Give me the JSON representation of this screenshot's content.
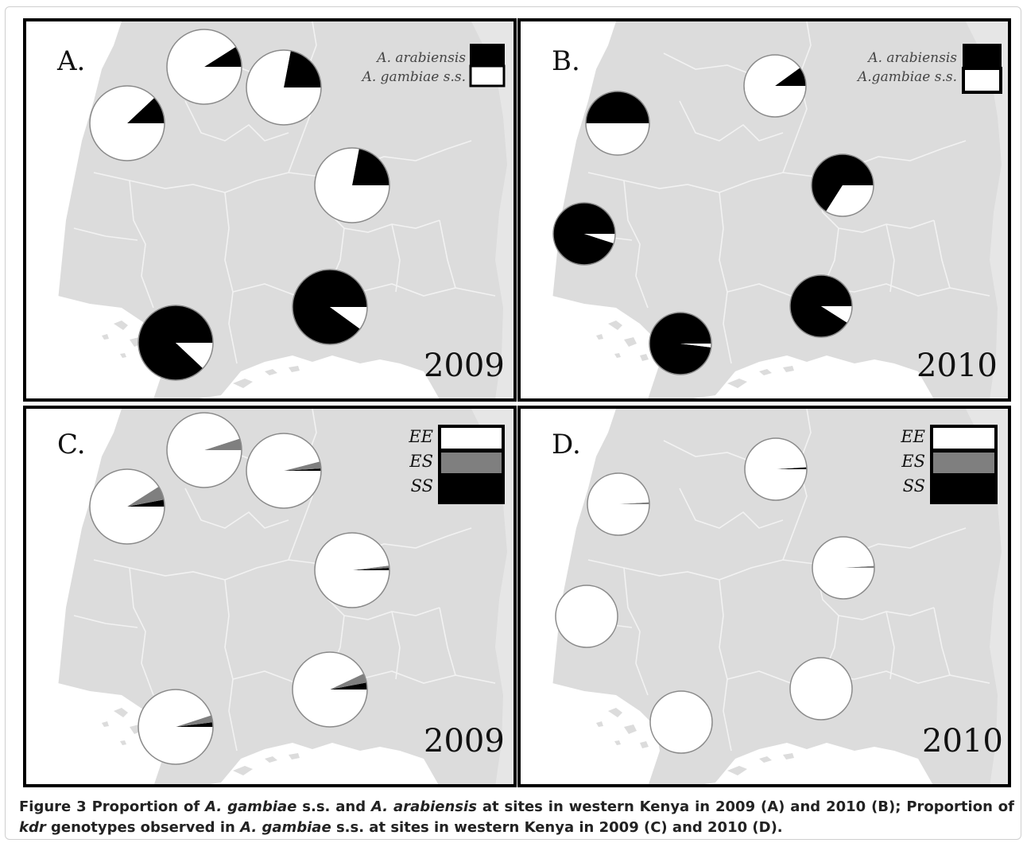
{
  "figure": {
    "panels": [
      {
        "id": "A",
        "label": "A.",
        "year": "2009",
        "legend_type": "species",
        "legend": [
          {
            "label": "A. arabiensis",
            "color": "#000000"
          },
          {
            "label": "A. gambiae s.s.",
            "color": "#ffffff"
          }
        ],
        "pies": [
          {
            "site": 1,
            "slices": [
              {
                "name": "A. arabiensis",
                "value": 0.12,
                "color": "#000000"
              },
              {
                "name": "A. gambiae s.s.",
                "value": 0.88,
                "color": "#ffffff"
              }
            ]
          },
          {
            "site": 2,
            "slices": [
              {
                "name": "A. arabiensis",
                "value": 0.09,
                "color": "#000000"
              },
              {
                "name": "A. gambiae s.s.",
                "value": 0.91,
                "color": "#ffffff"
              }
            ]
          },
          {
            "site": 3,
            "slices": [
              {
                "name": "A. arabiensis",
                "value": 0.22,
                "color": "#000000"
              },
              {
                "name": "A. gambiae s.s.",
                "value": 0.78,
                "color": "#ffffff"
              }
            ]
          },
          {
            "site": 4,
            "slices": [
              {
                "name": "A. arabiensis",
                "value": 0.22,
                "color": "#000000"
              },
              {
                "name": "A. gambiae s.s.",
                "value": 0.78,
                "color": "#ffffff"
              }
            ]
          },
          {
            "site": 5,
            "slices": [
              {
                "name": "A. arabiensis",
                "value": 0.88,
                "color": "#000000"
              },
              {
                "name": "A. gambiae s.s.",
                "value": 0.12,
                "color": "#ffffff"
              }
            ]
          },
          {
            "site": 6,
            "slices": [
              {
                "name": "A. arabiensis",
                "value": 0.9,
                "color": "#000000"
              },
              {
                "name": "A. gambiae s.s.",
                "value": 0.1,
                "color": "#ffffff"
              }
            ]
          }
        ]
      },
      {
        "id": "B",
        "label": "B.",
        "year": "2010",
        "legend_type": "species",
        "legend": [
          {
            "label": "A. arabiensis",
            "color": "#000000"
          },
          {
            "label": "A.gambiae s.s.",
            "color": "#ffffff"
          }
        ],
        "pies": [
          {
            "site": 2,
            "slices": [
              {
                "name": "A. arabiensis",
                "value": 0.1,
                "color": "#000000"
              },
              {
                "name": "A. gambiae s.s.",
                "value": 0.9,
                "color": "#ffffff"
              }
            ]
          },
          {
            "site": 1,
            "slices": [
              {
                "name": "A. arabiensis",
                "value": 0.5,
                "color": "#000000"
              },
              {
                "name": "A. gambiae s.s.",
                "value": 0.5,
                "color": "#ffffff"
              }
            ]
          },
          {
            "site": 4,
            "slices": [
              {
                "name": "A. arabiensis",
                "value": 0.66,
                "color": "#000000"
              },
              {
                "name": "A. gambiae s.s.",
                "value": 0.34,
                "color": "#ffffff"
              }
            ]
          },
          {
            "site": 7,
            "slices": [
              {
                "name": "A. arabiensis",
                "value": 0.95,
                "color": "#000000"
              },
              {
                "name": "A. gambiae s.s.",
                "value": 0.05,
                "color": "#ffffff"
              }
            ]
          },
          {
            "site": 6,
            "slices": [
              {
                "name": "A. arabiensis",
                "value": 0.91,
                "color": "#000000"
              },
              {
                "name": "A. gambiae s.s.",
                "value": 0.09,
                "color": "#ffffff"
              }
            ]
          },
          {
            "site": 5,
            "slices": [
              {
                "name": "A. arabiensis",
                "value": 0.98,
                "color": "#000000"
              },
              {
                "name": "A. gambiae s.s.",
                "value": 0.02,
                "color": "#ffffff"
              }
            ]
          }
        ]
      },
      {
        "id": "C",
        "label": "C.",
        "year": "2009",
        "legend_type": "genotype",
        "legend": [
          {
            "label": "EE",
            "color": "#ffffff"
          },
          {
            "label": "ES",
            "color": "#7f7f7f"
          },
          {
            "label": "SS",
            "color": "#000000"
          }
        ],
        "pies": [
          {
            "site": 1,
            "slices": [
              {
                "name": "SS",
                "value": 0.03,
                "color": "#000000"
              },
              {
                "name": "ES",
                "value": 0.06,
                "color": "#7f7f7f"
              },
              {
                "name": "EE",
                "value": 0.91,
                "color": "#ffffff"
              }
            ]
          },
          {
            "site": 2,
            "slices": [
              {
                "name": "SS",
                "value": 0.0,
                "color": "#000000"
              },
              {
                "name": "ES",
                "value": 0.05,
                "color": "#7f7f7f"
              },
              {
                "name": "EE",
                "value": 0.95,
                "color": "#ffffff"
              }
            ]
          },
          {
            "site": 3,
            "slices": [
              {
                "name": "SS",
                "value": 0.01,
                "color": "#000000"
              },
              {
                "name": "ES",
                "value": 0.03,
                "color": "#7f7f7f"
              },
              {
                "name": "EE",
                "value": 0.96,
                "color": "#ffffff"
              }
            ]
          },
          {
            "site": 4,
            "slices": [
              {
                "name": "SS",
                "value": 0.01,
                "color": "#000000"
              },
              {
                "name": "ES",
                "value": 0.01,
                "color": "#7f7f7f"
              },
              {
                "name": "EE",
                "value": 0.98,
                "color": "#ffffff"
              }
            ]
          },
          {
            "site": 5,
            "slices": [
              {
                "name": "SS",
                "value": 0.02,
                "color": "#000000"
              },
              {
                "name": "ES",
                "value": 0.03,
                "color": "#7f7f7f"
              },
              {
                "name": "EE",
                "value": 0.95,
                "color": "#ffffff"
              }
            ]
          },
          {
            "site": 6,
            "slices": [
              {
                "name": "SS",
                "value": 0.03,
                "color": "#000000"
              },
              {
                "name": "ES",
                "value": 0.04,
                "color": "#7f7f7f"
              },
              {
                "name": "EE",
                "value": 0.93,
                "color": "#ffffff"
              }
            ]
          }
        ]
      },
      {
        "id": "D",
        "label": "D.",
        "year": "2010",
        "legend_type": "genotype",
        "legend": [
          {
            "label": "EE",
            "color": "#ffffff"
          },
          {
            "label": "ES",
            "color": "#7f7f7f"
          },
          {
            "label": "SS",
            "color": "#000000"
          }
        ],
        "pies": [
          {
            "site": 2,
            "slices": [
              {
                "name": "SS",
                "value": 0.01,
                "color": "#000000"
              },
              {
                "name": "ES",
                "value": 0.0,
                "color": "#7f7f7f"
              },
              {
                "name": "EE",
                "value": 0.99,
                "color": "#ffffff"
              }
            ]
          },
          {
            "site": 1,
            "slices": [
              {
                "name": "SS",
                "value": 0.0,
                "color": "#000000"
              },
              {
                "name": "ES",
                "value": 0.01,
                "color": "#7f7f7f"
              },
              {
                "name": "EE",
                "value": 0.99,
                "color": "#ffffff"
              }
            ]
          },
          {
            "site": 4,
            "slices": [
              {
                "name": "SS",
                "value": 0.0,
                "color": "#000000"
              },
              {
                "name": "ES",
                "value": 0.01,
                "color": "#7f7f7f"
              },
              {
                "name": "EE",
                "value": 0.99,
                "color": "#ffffff"
              }
            ]
          },
          {
            "site": 7,
            "slices": [
              {
                "name": "SS",
                "value": 0.0,
                "color": "#000000"
              },
              {
                "name": "ES",
                "value": 0.0,
                "color": "#7f7f7f"
              },
              {
                "name": "EE",
                "value": 1.0,
                "color": "#ffffff"
              }
            ]
          },
          {
            "site": 6,
            "slices": [
              {
                "name": "SS",
                "value": 0.0,
                "color": "#000000"
              },
              {
                "name": "ES",
                "value": 0.0,
                "color": "#7f7f7f"
              },
              {
                "name": "EE",
                "value": 1.0,
                "color": "#ffffff"
              }
            ]
          },
          {
            "site": 5,
            "slices": [
              {
                "name": "SS",
                "value": 0.0,
                "color": "#000000"
              },
              {
                "name": "ES",
                "value": 0.0,
                "color": "#7f7f7f"
              },
              {
                "name": "EE",
                "value": 1.0,
                "color": "#ffffff"
              }
            ]
          }
        ]
      }
    ],
    "colors": {
      "land": "#dcdcdc",
      "water": "#ffffff",
      "boundary": "#f2f2f2",
      "panel_border": "#000000",
      "pie_outline": "#8a8a8a"
    }
  },
  "caption": {
    "figure_label": "Figure 3",
    "segments": [
      {
        "text": " Proportion of ",
        "style": "normal"
      },
      {
        "text": "A. gambiae",
        "style": "italic"
      },
      {
        "text": " s.s. and ",
        "style": "normal"
      },
      {
        "text": "A. arabiensis",
        "style": "italic"
      },
      {
        "text": " at sites in western Kenya in 2009 (A) and 2010 (B); Proportion of ",
        "style": "normal"
      },
      {
        "text": "kdr",
        "style": "italic"
      },
      {
        "text": " genotypes observed in ",
        "style": "normal"
      },
      {
        "text": "A. gambiae",
        "style": "italic"
      },
      {
        "text": " s.s. at sites in western Kenya in 2009 (C) and 2010 (D).",
        "style": "normal"
      }
    ]
  }
}
